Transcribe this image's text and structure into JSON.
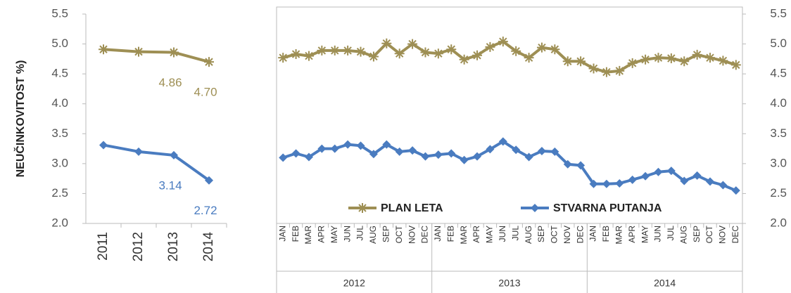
{
  "chart_data": [
    {
      "type": "line",
      "ylabel": "NEUČINKOVITOST %)",
      "categories": [
        "2011",
        "2012",
        "2013",
        "2014"
      ],
      "series": [
        {
          "name": "PLAN LETA",
          "color": "#9e8f54",
          "marker": "asterisk",
          "values": [
            4.91,
            4.87,
            4.86,
            4.7
          ],
          "value_labels": [
            null,
            null,
            "4.86",
            "4.70"
          ]
        },
        {
          "name": "STVARNA PUTANJA",
          "color": "#4a7cc0",
          "marker": "diamond",
          "values": [
            3.31,
            3.2,
            3.14,
            2.72
          ],
          "value_labels": [
            null,
            null,
            "3.14",
            "2.72"
          ]
        }
      ],
      "ylim": [
        2.0,
        5.5
      ],
      "yticks": [
        {
          "value": 2.0,
          "label": "2.0"
        },
        2.5,
        {
          "value": 3.0,
          "label": "3.0"
        },
        3.5,
        {
          "value": 4.0,
          "label": "4.0"
        },
        4.5,
        {
          "value": 5.0,
          "label": "5.0"
        },
        5.5
      ],
      "y_axis_position": "left"
    },
    {
      "type": "line",
      "categories": [
        "JAN",
        "FEB",
        "MAR",
        "APR",
        "MAY",
        "JUN",
        "JUL",
        "AUG",
        "SEP",
        "OCT",
        "NOV",
        "DEC",
        "JAN",
        "FEB",
        "MAR",
        "APR",
        "MAY",
        "JUN",
        "JUL",
        "AUG",
        "SEP",
        "OCT",
        "NOV",
        "DEC",
        "JAN",
        "FEB",
        "MAR",
        "APR",
        "MAY",
        "JUN",
        "JUL",
        "AUG",
        "SEP",
        "OCT",
        "NOV",
        "DEC"
      ],
      "category_groups": [
        "2012",
        "2013",
        "2014"
      ],
      "series": [
        {
          "name": "PLAN LETA",
          "color": "#9e8f54",
          "marker": "asterisk",
          "values": [
            4.77,
            4.83,
            4.8,
            4.89,
            4.89,
            4.89,
            4.87,
            4.79,
            5.01,
            4.84,
            5.0,
            4.86,
            4.84,
            4.91,
            4.74,
            4.81,
            4.95,
            5.04,
            4.88,
            4.77,
            4.94,
            4.91,
            4.71,
            4.71,
            4.59,
            4.53,
            4.55,
            4.68,
            4.74,
            4.77,
            4.76,
            4.71,
            4.82,
            4.77,
            4.72,
            4.65
          ]
        },
        {
          "name": "STVARNA PUTANJA",
          "color": "#4a7cc0",
          "marker": "diamond",
          "values": [
            3.1,
            3.17,
            3.11,
            3.25,
            3.25,
            3.32,
            3.3,
            3.16,
            3.32,
            3.2,
            3.22,
            3.12,
            3.15,
            3.17,
            3.06,
            3.12,
            3.24,
            3.37,
            3.23,
            3.11,
            3.21,
            3.2,
            2.99,
            2.97,
            2.66,
            2.66,
            2.67,
            2.73,
            2.79,
            2.86,
            2.88,
            2.71,
            2.8,
            2.7,
            2.64,
            2.55
          ]
        }
      ],
      "ylim": [
        2.0,
        5.5
      ],
      "yticks": [
        {
          "value": 2.0,
          "label": "2.0"
        },
        2.5,
        {
          "value": 3.0,
          "label": "3.0"
        },
        3.5,
        {
          "value": 4.0,
          "label": "4.0"
        },
        4.5,
        {
          "value": 5.0,
          "label": "5.0"
        },
        5.5
      ],
      "y_axis_position": "right",
      "legend": "bottom"
    }
  ]
}
